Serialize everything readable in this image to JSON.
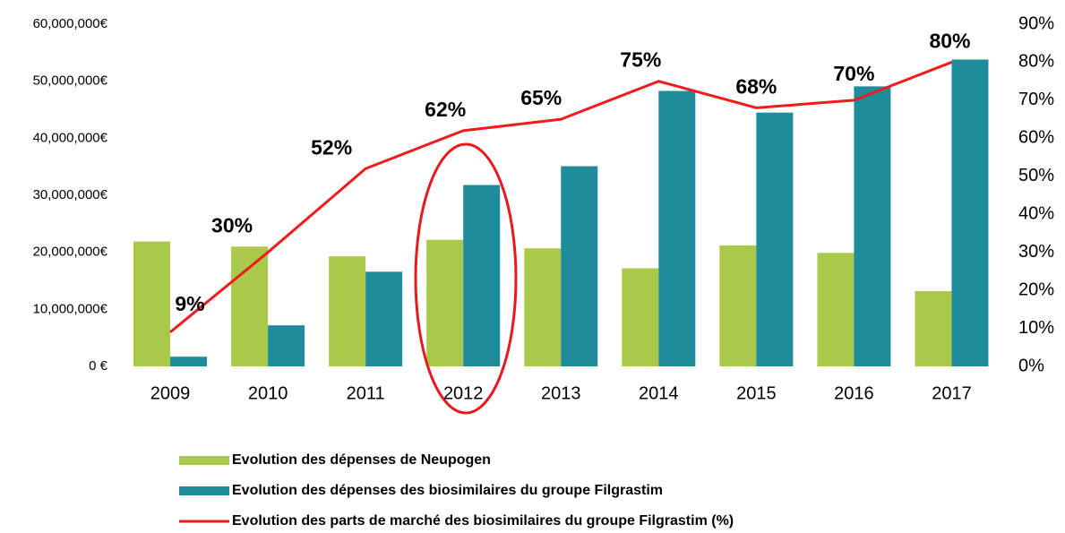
{
  "chart_data": {
    "type": "bar-line",
    "categories": [
      "2009",
      "2010",
      "2011",
      "2012",
      "2013",
      "2014",
      "2015",
      "2016",
      "2017"
    ],
    "series": [
      {
        "name": "Evolution des dépenses de Neupogen",
        "color": "#a9c94a",
        "type": "bar",
        "values": [
          21900000,
          21000000,
          19300000,
          22200000,
          20700000,
          17200000,
          21200000,
          19900000,
          13200000
        ]
      },
      {
        "name": "Evolution des dépenses des biosimilaires du groupe Filgrastim",
        "color": "#1f8c9c",
        "type": "bar",
        "values": [
          1700000,
          7200000,
          16600000,
          31800000,
          35100000,
          48300000,
          44500000,
          49100000,
          53800000
        ]
      },
      {
        "name": "Evolution des parts de marché des biosimilaires du groupe Filgrastim (%)",
        "color": "#ee1c1c",
        "type": "line",
        "axis": "y2",
        "values": [
          9,
          30,
          52,
          62,
          65,
          75,
          68,
          70,
          80
        ],
        "value_labels": [
          "9%",
          "30%",
          "52%",
          "62%",
          "65%",
          "75%",
          "68%",
          "70%",
          "80%"
        ]
      }
    ],
    "ylim": [
      0,
      60000000
    ],
    "yticks": [
      {
        "value": 0,
        "label": "0 €"
      },
      {
        "value": 10000000,
        "label": "10,000,000€"
      },
      {
        "value": 20000000,
        "label": "20,000,000€"
      },
      {
        "value": 30000000,
        "label": "30,000,000€"
      },
      {
        "value": 40000000,
        "label": "40,000,000€"
      },
      {
        "value": 50000000,
        "label": "50,000,000€"
      },
      {
        "value": 60000000,
        "label": "60,000,000€"
      }
    ],
    "y2lim": [
      0,
      90
    ],
    "y2ticks": [
      {
        "value": 0,
        "label": "0%"
      },
      {
        "value": 10,
        "label": "10%"
      },
      {
        "value": 20,
        "label": "20%"
      },
      {
        "value": 30,
        "label": "30%"
      },
      {
        "value": 40,
        "label": "40%"
      },
      {
        "value": 50,
        "label": "50%"
      },
      {
        "value": 60,
        "label": "60%"
      },
      {
        "value": 70,
        "label": "70%"
      },
      {
        "value": 80,
        "label": "80%"
      },
      {
        "value": 90,
        "label": "90%"
      }
    ],
    "legend": "bottom"
  }
}
